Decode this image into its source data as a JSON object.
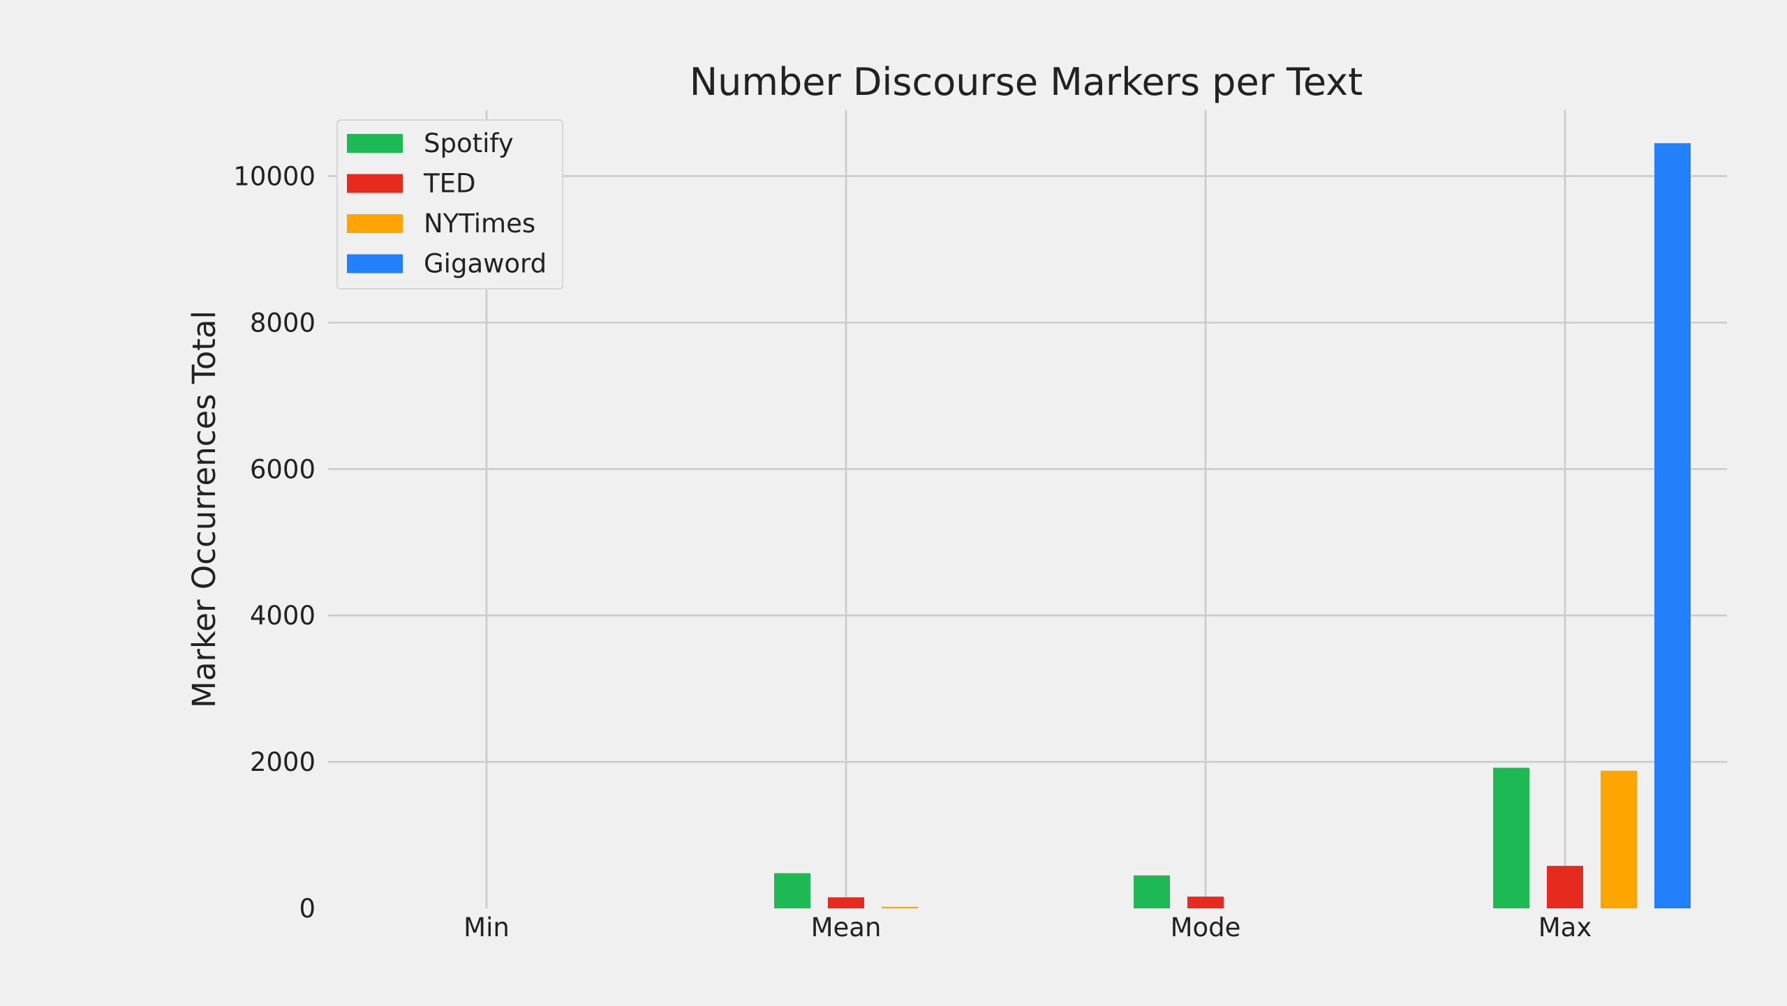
{
  "chart_data": {
    "type": "bar",
    "title": "Number Discourse Markers per Text",
    "xlabel": "",
    "ylabel": "Marker Occurrences Total",
    "categories": [
      "Min",
      "Mean",
      "Mode",
      "Max"
    ],
    "series": [
      {
        "name": "Spotify",
        "color": "#1db954",
        "values": [
          0,
          480,
          450,
          1920
        ]
      },
      {
        "name": "TED",
        "color": "#e62b1e",
        "values": [
          0,
          150,
          160,
          580
        ]
      },
      {
        "name": "NYTimes",
        "color": "#ffa500",
        "values": [
          0,
          20,
          0,
          1880
        ]
      },
      {
        "name": "Gigaword",
        "color": "#2180fa",
        "values": [
          0,
          0,
          0,
          10450
        ]
      }
    ],
    "ylim": [
      0,
      10900
    ],
    "yticks": [
      0,
      2000,
      4000,
      6000,
      8000,
      10000
    ],
    "grid": true,
    "legend_position": "top-left"
  }
}
